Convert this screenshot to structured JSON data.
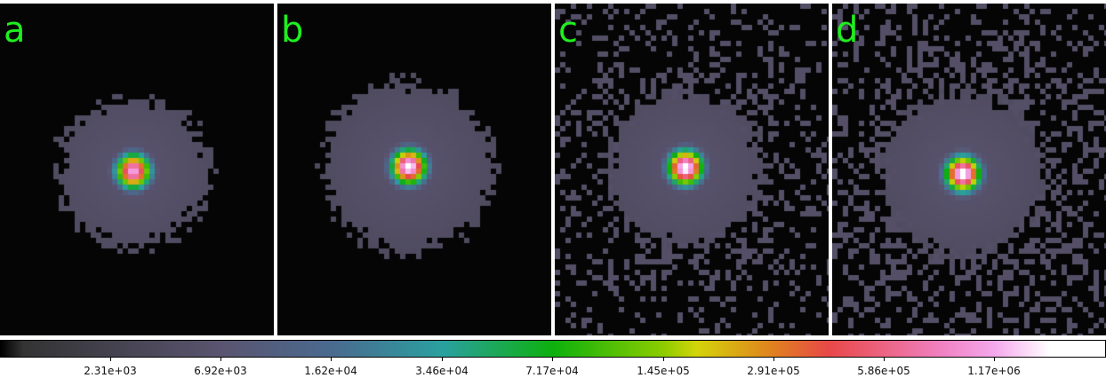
{
  "panels": [
    {
      "label": "a",
      "halo": "compact"
    },
    {
      "label": "b",
      "halo": "compact-wide"
    },
    {
      "label": "c",
      "halo": "scattered"
    },
    {
      "label": "d",
      "halo": "scattered-wide"
    }
  ],
  "colorbar": {
    "scale": "log",
    "ticks": [
      "2.31e+03",
      "6.92e+03",
      "1.62e+04",
      "3.46e+04",
      "7.17e+04",
      "1.45e+05",
      "2.91e+05",
      "5.86e+05",
      "1.17e+06"
    ],
    "colormap": [
      "#000000",
      "#333333",
      "#5a5470",
      "#4a6a8f",
      "#2aa0a0",
      "#0db00d",
      "#8ccc00",
      "#d4d40a",
      "#e08020",
      "#e84848",
      "#f080c0",
      "#f4a8ec",
      "#ffffff"
    ],
    "label_color": "#1fef1f"
  }
}
